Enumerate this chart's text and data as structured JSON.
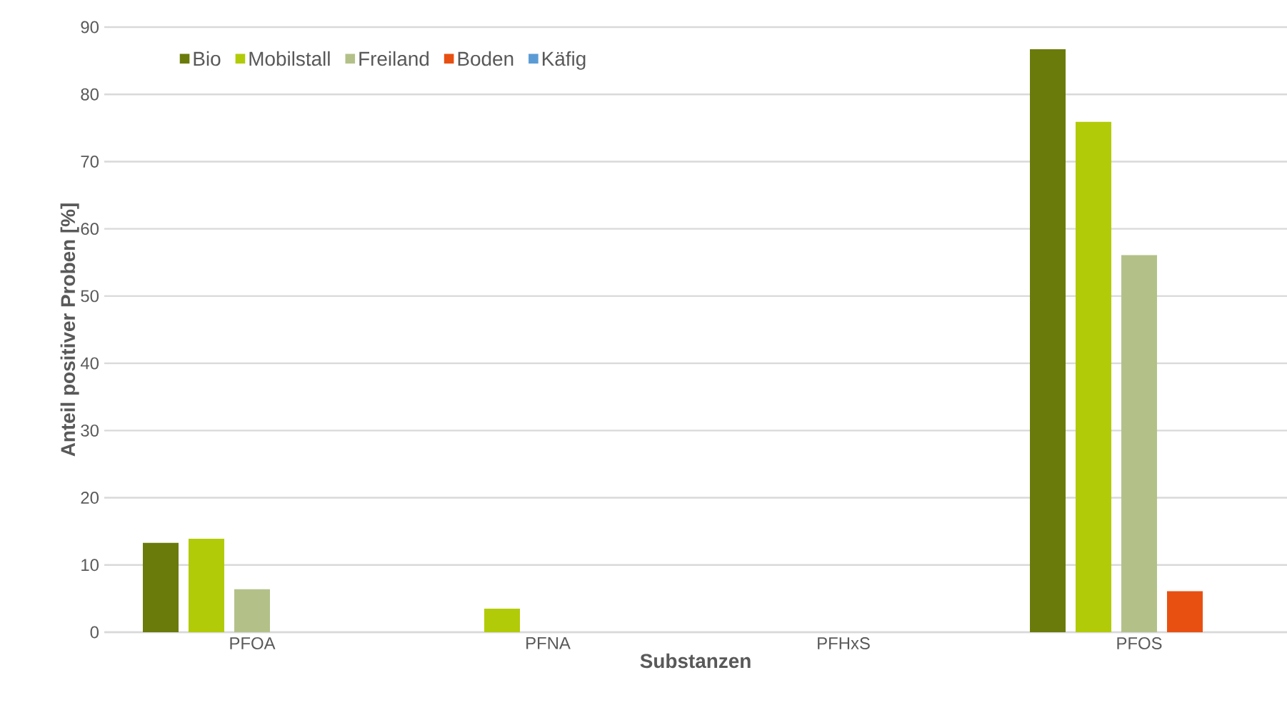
{
  "chart_data": {
    "type": "bar",
    "xlabel": "Substanzen",
    "ylabel": "Anteil positiver Proben [%]",
    "categories": [
      "PFOA",
      "PFNA",
      "PFHxS",
      "PFOS"
    ],
    "series": [
      {
        "name": "Bio",
        "color": "#6b7b0b",
        "values": [
          13.3,
          0,
          0,
          86.7
        ]
      },
      {
        "name": "Mobilstall",
        "color": "#b2cb08",
        "values": [
          13.9,
          3.5,
          0,
          75.9
        ]
      },
      {
        "name": "Freiland",
        "color": "#b3c189",
        "values": [
          6.4,
          0,
          0,
          56.1
        ]
      },
      {
        "name": "Boden",
        "color": "#e85012",
        "values": [
          0,
          0,
          0,
          6.1
        ]
      },
      {
        "name": "Käfig",
        "color": "#5b9bd5",
        "values": [
          0,
          0,
          0,
          0
        ]
      }
    ],
    "ylim": [
      0,
      90
    ],
    "yticks": [
      0,
      10,
      20,
      30,
      40,
      50,
      60,
      70,
      80,
      90
    ],
    "grid": "y",
    "legend": "top left"
  }
}
